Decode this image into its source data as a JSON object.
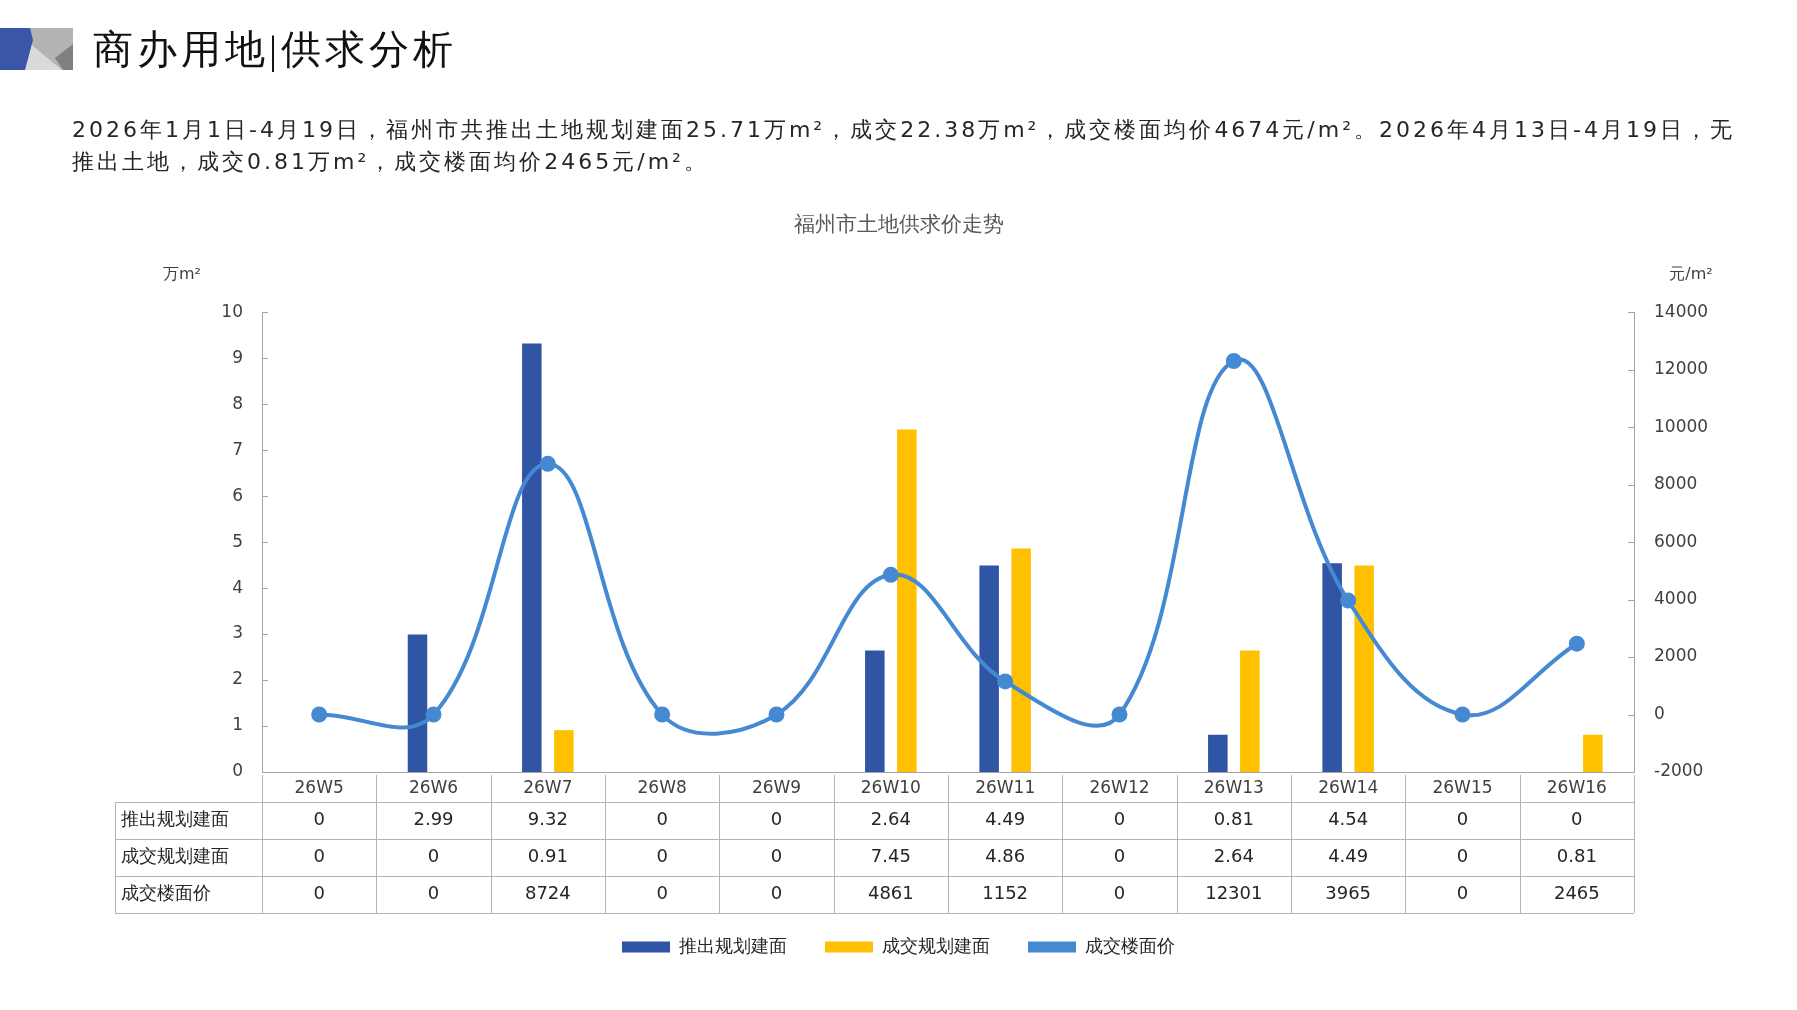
{
  "chart_data": {
    "type": "bar",
    "title": "福州市土地供求价走势",
    "annotations": [
      "商办用地|供求分析",
      "2026年1月1日-4月19日，福州市共推出土地规划建面25.71万m²，成交22.38万m²，成交楼面均价4674元/m²。2026年4月13日-4月19日，无推出土地，成交0.81万m²，成交楼面均价2465元/m²。"
    ],
    "ylabel": "万m²",
    "y2label": "元/m²",
    "categories": [
      "26W5",
      "26W6",
      "26W7",
      "26W8",
      "26W9",
      "26W10",
      "26W11",
      "26W12",
      "26W13",
      "26W14",
      "26W15",
      "26W16"
    ],
    "series": [
      {
        "name": "推出规划建面",
        "color": "#2f55a4",
        "values": [
          0,
          2.99,
          9.32,
          0,
          0,
          2.64,
          4.49,
          0,
          0.81,
          4.54,
          0,
          0
        ]
      },
      {
        "name": "成交规划建面",
        "color": "#ffc000",
        "values": [
          0,
          0,
          0.91,
          0,
          0,
          7.45,
          4.86,
          0,
          2.64,
          4.49,
          0,
          0.81
        ]
      },
      {
        "name": "成交楼面价",
        "type": "line",
        "axis": "y2",
        "color": "#4689d3",
        "values": [
          0,
          0,
          8724,
          0,
          0,
          4861,
          1152,
          0,
          12301,
          3965,
          0,
          2465
        ]
      }
    ],
    "ylim": [
      0,
      10
    ],
    "yticks": [
      0,
      1,
      2,
      3,
      4,
      5,
      6,
      7,
      8,
      9,
      10
    ],
    "y2lim": [
      -2000,
      14000
    ],
    "y2ticks": [
      -2000,
      0,
      2000,
      4000,
      6000,
      8000,
      10000,
      12000,
      14000
    ],
    "marker": "circle",
    "legend": "bottom",
    "data_labels": true
  }
}
